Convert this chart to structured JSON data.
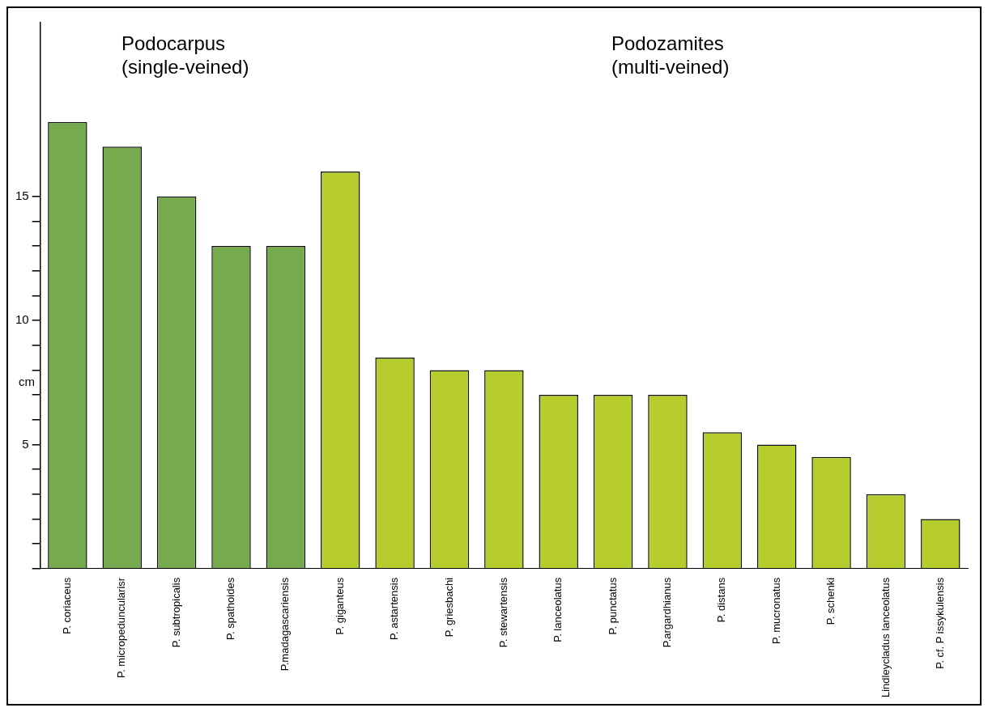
{
  "chart_data": {
    "type": "bar",
    "ylabel": "cm",
    "categories": [
      "P. coriaceus",
      "P. micropeduncularisr",
      "P. subtropicalis",
      "P. spathoides",
      "P.madagascariensis",
      "P. giganteus",
      "P. astartensis",
      "P. griesbachi",
      "P. stewartensis",
      "P. lanceolatus",
      "P. punctatus",
      "P.argardhianus",
      "P. distans",
      "P. mucronatus",
      "P. schenki",
      "Lindleycladus lanceolatus",
      "P. cf. P issykulensis"
    ],
    "values": [
      18,
      17,
      15,
      13,
      13,
      16,
      8.5,
      8,
      8,
      7,
      7,
      7,
      5.5,
      5,
      4.5,
      3,
      2
    ],
    "colors": [
      "#76aa4f",
      "#76aa4f",
      "#76aa4f",
      "#76aa4f",
      "#76aa4f",
      "#b7cd2d",
      "#b7cd2d",
      "#b7cd2d",
      "#b7cd2d",
      "#b7cd2d",
      "#b7cd2d",
      "#b7cd2d",
      "#b7cd2d",
      "#b7cd2d",
      "#b7cd2d",
      "#b7cd2d",
      "#b7cd2d"
    ],
    "ylim": [
      0,
      22
    ],
    "yticks": [
      {
        "value": 0,
        "label": null
      },
      {
        "value": 1,
        "label": null
      },
      {
        "value": 2,
        "label": null
      },
      {
        "value": 3,
        "label": null
      },
      {
        "value": 4,
        "label": null
      },
      5,
      {
        "value": 6,
        "label": null
      },
      {
        "value": 7,
        "label": null
      },
      {
        "value": 8,
        "label": null
      },
      {
        "value": 9,
        "label": null
      },
      10,
      {
        "value": 11,
        "label": null
      },
      {
        "value": 12,
        "label": null
      },
      {
        "value": 13,
        "label": null
      },
      {
        "value": 14,
        "label": null
      },
      15
    ],
    "annotations": [
      "Podocarpus\n(single-veined)",
      "Podozamites\n(multi-veined)"
    ],
    "grid": false,
    "legend": false
  }
}
